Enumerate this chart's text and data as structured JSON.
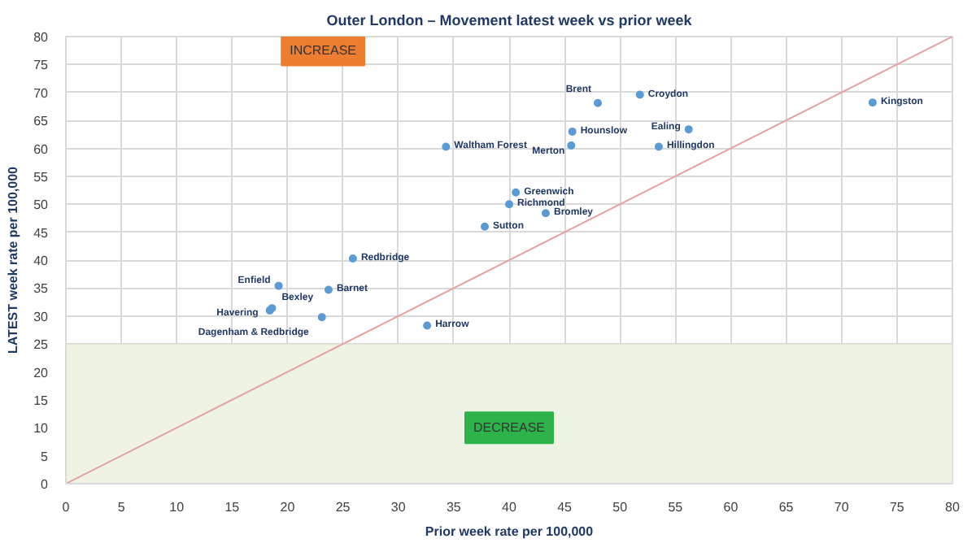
{
  "chart_data": {
    "type": "scatter",
    "title": "Outer London – Movement latest week vs prior week",
    "xlabel": "Prior week rate per 100,000",
    "ylabel": "LATEST week rate per 100,000",
    "xlim": [
      0,
      80
    ],
    "ylim": [
      0,
      80
    ],
    "xticks": [
      0,
      5,
      10,
      15,
      20,
      25,
      30,
      35,
      40,
      45,
      50,
      55,
      60,
      65,
      70,
      75,
      80
    ],
    "yticks": [
      0,
      5,
      10,
      15,
      20,
      25,
      30,
      35,
      40,
      45,
      50,
      55,
      60,
      65,
      70,
      75,
      80
    ],
    "grid": true,
    "marker": "circle",
    "series": [
      {
        "color": "#5b9bd5",
        "x": [
          25.9,
          19.2,
          18.4,
          18.6,
          23.7,
          23.1,
          32.6,
          34.3,
          37.8,
          40.0,
          40.6,
          43.3,
          45.6,
          45.7,
          48.0,
          51.8,
          56.2,
          53.5,
          72.8
        ],
        "values": [
          40.3,
          35.4,
          31.0,
          31.4,
          34.7,
          29.8,
          28.3,
          60.3,
          46.0,
          50.0,
          52.1,
          48.4,
          60.5,
          63.0,
          68.1,
          69.6,
          63.4,
          60.3,
          68.2
        ]
      },
      {
        "type": "line",
        "marker": "none",
        "color": "#e6a0a0",
        "x": [
          0,
          80
        ],
        "values": [
          0,
          80
        ]
      }
    ],
    "bands": [
      {
        "axis": "y",
        "from": 0,
        "to": 25,
        "label": "DECREASE",
        "color": "#eef3e4"
      }
    ],
    "annotations": [
      "INCREASE",
      {
        "text": "Redbridge",
        "x": 25.9,
        "y": 40.3
      },
      {
        "text": "Enfield",
        "x": 19.2,
        "y": 35.4
      },
      {
        "text": "Havering",
        "x": 18.4,
        "y": 31.0
      },
      {
        "text": "Bexley",
        "x": 18.6,
        "y": 31.4
      },
      {
        "text": "Barnet",
        "x": 23.7,
        "y": 34.7
      },
      {
        "text": "Dagenham & Redbridge",
        "x": 23.1,
        "y": 29.8
      },
      {
        "text": "Harrow",
        "x": 32.6,
        "y": 28.3
      },
      {
        "text": "Waltham Forest",
        "x": 34.3,
        "y": 60.3
      },
      {
        "text": "Sutton",
        "x": 37.8,
        "y": 46.0
      },
      {
        "text": "Richmond",
        "x": 40.0,
        "y": 50.0
      },
      {
        "text": "Greenwich",
        "x": 40.6,
        "y": 52.1
      },
      {
        "text": "Bromley",
        "x": 43.3,
        "y": 48.4
      },
      {
        "text": "Merton",
        "x": 45.6,
        "y": 60.5
      },
      {
        "text": "Hounslow",
        "x": 45.7,
        "y": 63.0
      },
      {
        "text": "Brent",
        "x": 48.0,
        "y": 68.1
      },
      {
        "text": "Croydon",
        "x": 51.8,
        "y": 69.6
      },
      {
        "text": "Ealing",
        "x": 56.2,
        "y": 63.4
      },
      {
        "text": "Hillingdon",
        "x": 53.5,
        "y": 60.3
      },
      {
        "text": "Kingston",
        "x": 72.8,
        "y": 68.2
      }
    ]
  }
}
